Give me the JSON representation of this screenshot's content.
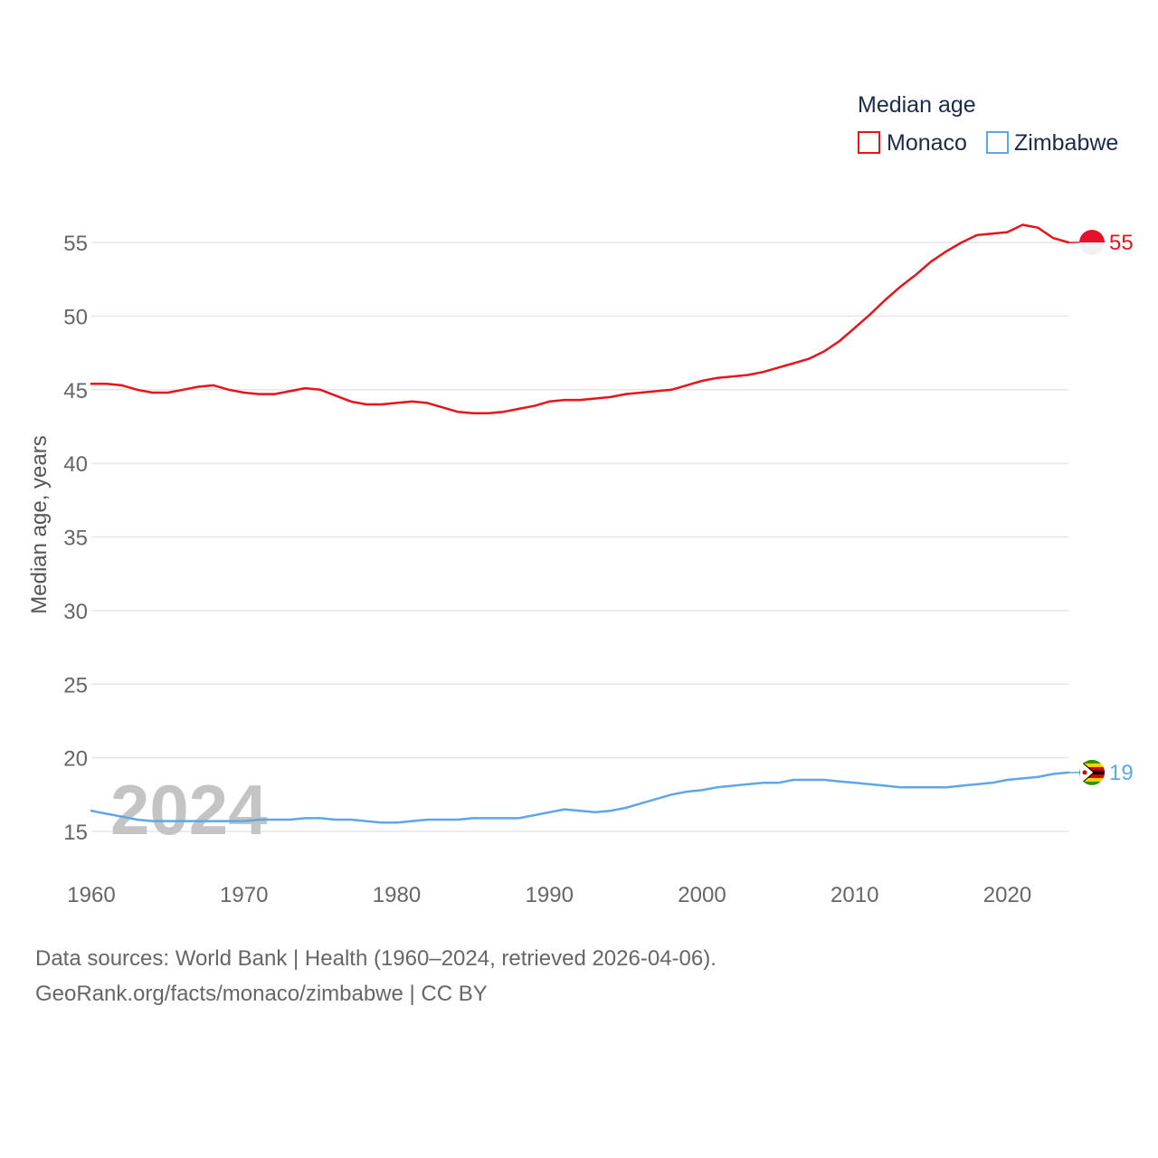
{
  "chart_data": {
    "type": "line",
    "title": "",
    "xlabel": "",
    "ylabel": "Median age, years",
    "xlim": [
      1960,
      2024
    ],
    "ylim": [
      12.5,
      57.5
    ],
    "x_ticks": [
      1960,
      1970,
      1980,
      1990,
      2000,
      2010,
      2020
    ],
    "y_ticks": [
      15,
      20,
      25,
      30,
      35,
      40,
      45,
      50,
      55
    ],
    "grid": true,
    "legend": {
      "title": "Median age",
      "position": "top-right"
    },
    "watermark_year": "2024",
    "x": [
      1960,
      1961,
      1962,
      1963,
      1964,
      1965,
      1966,
      1967,
      1968,
      1969,
      1970,
      1971,
      1972,
      1973,
      1974,
      1975,
      1976,
      1977,
      1978,
      1979,
      1980,
      1981,
      1982,
      1983,
      1984,
      1985,
      1986,
      1987,
      1988,
      1989,
      1990,
      1991,
      1992,
      1993,
      1994,
      1995,
      1996,
      1997,
      1998,
      1999,
      2000,
      2001,
      2002,
      2003,
      2004,
      2005,
      2006,
      2007,
      2008,
      2009,
      2010,
      2011,
      2012,
      2013,
      2014,
      2015,
      2016,
      2017,
      2018,
      2019,
      2020,
      2021,
      2022,
      2023,
      2024
    ],
    "series": [
      {
        "name": "Monaco",
        "color": "#e8141c",
        "end_label": "55",
        "flag": "monaco",
        "values": [
          45.4,
          45.4,
          45.3,
          45.0,
          44.8,
          44.8,
          45.0,
          45.2,
          45.3,
          45.0,
          44.8,
          44.7,
          44.7,
          44.9,
          45.1,
          45.0,
          44.6,
          44.2,
          44.0,
          44.0,
          44.1,
          44.2,
          44.1,
          43.8,
          43.5,
          43.4,
          43.4,
          43.5,
          43.7,
          43.9,
          44.2,
          44.3,
          44.3,
          44.4,
          44.5,
          44.7,
          44.8,
          44.9,
          45.0,
          45.3,
          45.6,
          45.8,
          45.9,
          46.0,
          46.2,
          46.5,
          46.8,
          47.1,
          47.6,
          48.3,
          49.2,
          50.1,
          51.1,
          52.0,
          52.8,
          53.7,
          54.4,
          55.0,
          55.5,
          55.6,
          55.7,
          56.2,
          56.0,
          55.3,
          55.0
        ]
      },
      {
        "name": "Zimbabwe",
        "color": "#5ea7e6",
        "end_label": "19",
        "flag": "zimbabwe",
        "values": [
          16.4,
          16.2,
          16.0,
          15.8,
          15.7,
          15.7,
          15.7,
          15.7,
          15.7,
          15.7,
          15.7,
          15.8,
          15.8,
          15.8,
          15.9,
          15.9,
          15.8,
          15.8,
          15.7,
          15.6,
          15.6,
          15.7,
          15.8,
          15.8,
          15.8,
          15.9,
          15.9,
          15.9,
          15.9,
          16.1,
          16.3,
          16.5,
          16.4,
          16.3,
          16.4,
          16.6,
          16.9,
          17.2,
          17.5,
          17.7,
          17.8,
          18.0,
          18.1,
          18.2,
          18.3,
          18.3,
          18.5,
          18.5,
          18.5,
          18.4,
          18.3,
          18.2,
          18.1,
          18.0,
          18.0,
          18.0,
          18.0,
          18.1,
          18.2,
          18.3,
          18.5,
          18.6,
          18.7,
          18.9,
          19.0
        ]
      }
    ]
  },
  "footer": {
    "source_line": "Data sources: World Bank | Health (1960–2024, retrieved 2026-04-06).",
    "license_line": "GeoRank.org/facts/monaco/zimbabwe | CC BY"
  }
}
